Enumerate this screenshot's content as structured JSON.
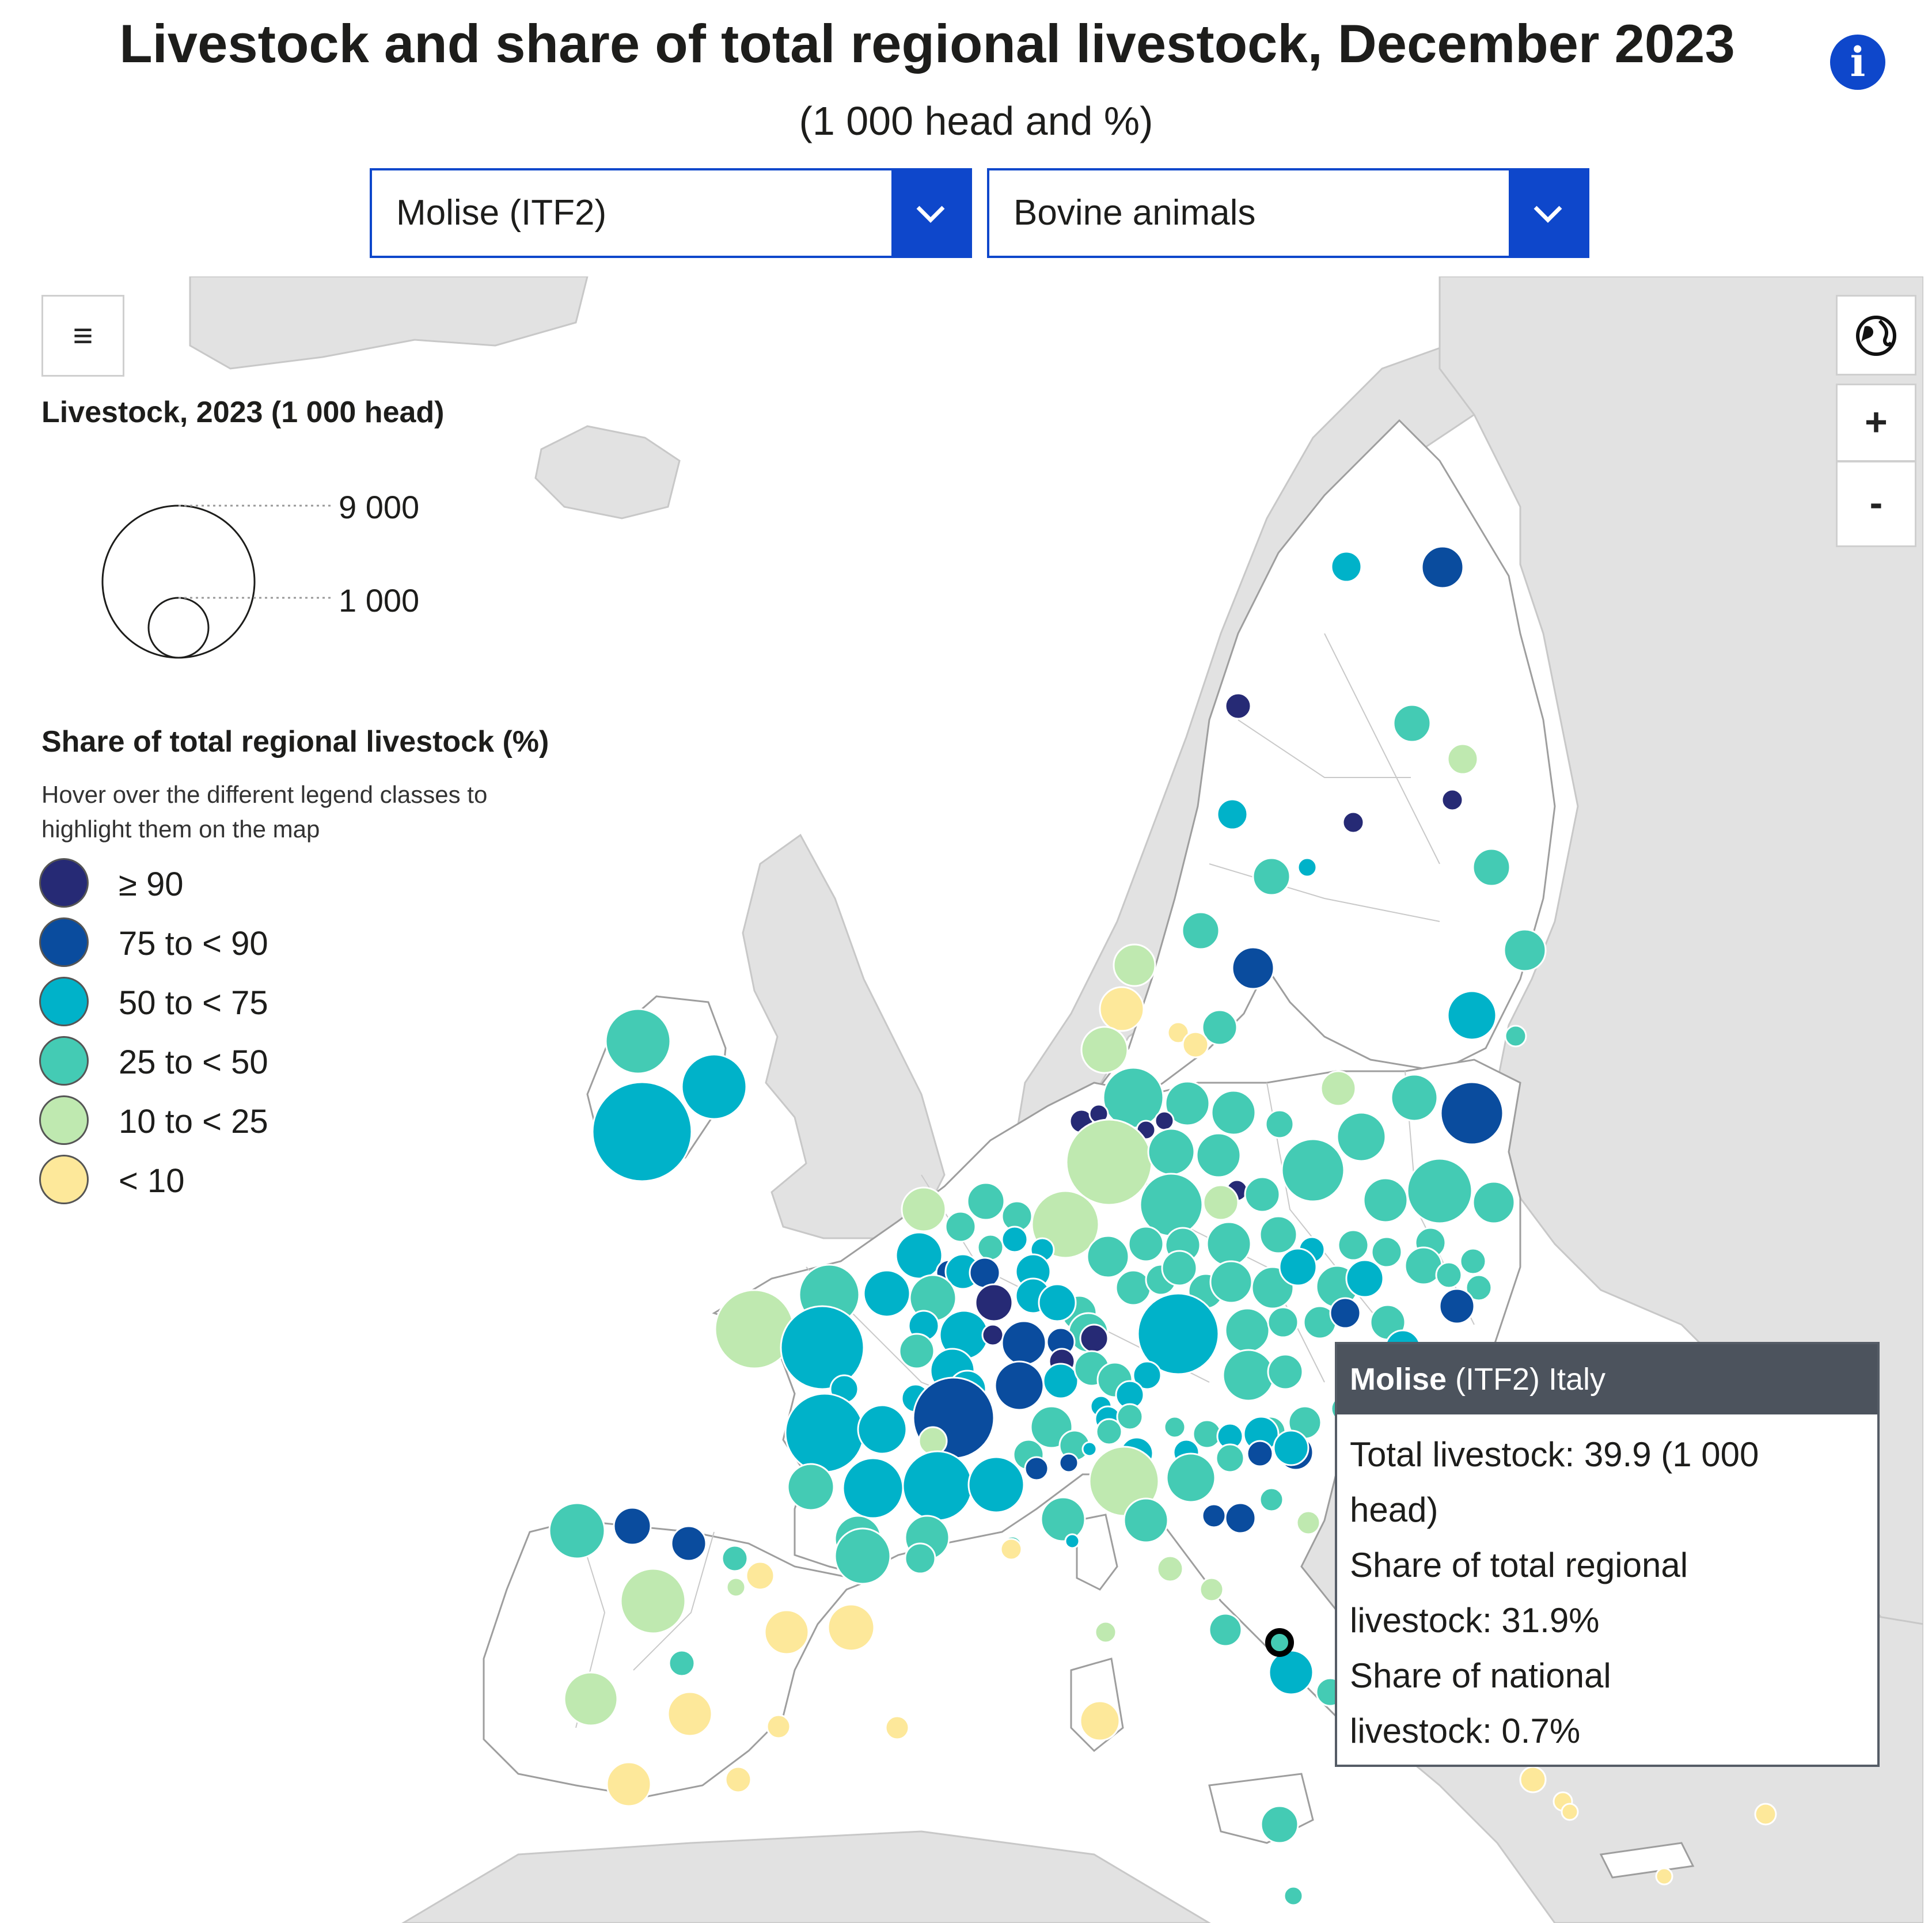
{
  "title": "Livestock and share of total regional livestock, December 2023",
  "subtitle": "(1 000 head and %)",
  "region_select": {
    "value": "Molise (ITF2)"
  },
  "animal_select": {
    "value": "Bovine animals"
  },
  "size_legend": {
    "title": "Livestock, 2023 (1 000 head)",
    "large_label": "9 000",
    "small_label": "1 000"
  },
  "share_legend": {
    "title": "Share of total regional livestock (%)",
    "hint_line1": "Hover over the different legend classes to",
    "hint_line2": "highlight them on the map",
    "classes": [
      {
        "label": "≥ 90",
        "color": "#262a75"
      },
      {
        "label": "75 to < 90",
        "color": "#0a4c9e"
      },
      {
        "label": "50 to < 75",
        "color": "#00b2c9"
      },
      {
        "label": "25 to < 50",
        "color": "#44cbb4"
      },
      {
        "label": "10 to < 25",
        "color": "#bfe9b0"
      },
      {
        "label": "< 10",
        "color": "#fde89a"
      }
    ]
  },
  "controls": {
    "zoom_in": "+",
    "zoom_out": "-",
    "menu_icon": "hamburger-menu-icon",
    "globe_icon": "globe-icon"
  },
  "tooltip": {
    "region": "Molise",
    "region_rest": " (ITF2) Italy",
    "line1": "Total livestock: 39.9 (1 000",
    "line2": "head)",
    "line3": "Share of total regional",
    "line4": "livestock: 31.9%",
    "line5": "Share of national",
    "line6": "livestock: 0.7%"
  },
  "colors": {
    "accent": "#0e47cb",
    "land_eu": "#ffffff",
    "land_non_eu": "#e2e2e2",
    "sea": "#ffffff",
    "border": "#bdbdbd"
  }
}
